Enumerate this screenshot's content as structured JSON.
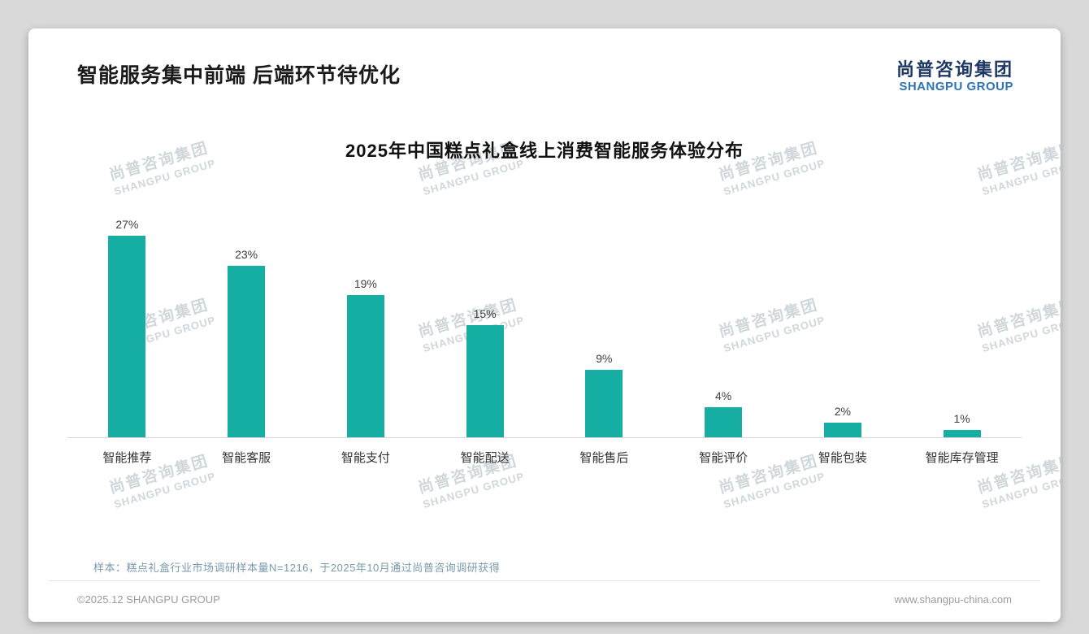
{
  "page": {
    "title": "智能服务集中前端 后端环节待优化",
    "logo": {
      "cn": "尚普咨询集团",
      "en": "SHANGPU GROUP"
    },
    "watermark": {
      "cn": "尚普咨询集团",
      "en": "SHANGPU GROUP"
    },
    "footnote": "样本：糕点礼盒行业市场调研样本量N=1216，于2025年10月通过尚普咨询调研获得",
    "footer_left": "©2025.12 SHANGPU GROUP",
    "footer_right": "www.shangpu-china.com"
  },
  "colors": {
    "bar": "#16ada3",
    "logo_cn": "#1f3864",
    "logo_en": "#2e74b5",
    "footnote": "#7b9aaa"
  },
  "chart_data": {
    "type": "bar",
    "title": "2025年中国糕点礼盒线上消费智能服务体验分布",
    "categories": [
      "智能推荐",
      "智能客服",
      "智能支付",
      "智能配送",
      "智能售后",
      "智能评价",
      "智能包装",
      "智能库存管理"
    ],
    "values": [
      27,
      23,
      19,
      15,
      9,
      4,
      2,
      1
    ],
    "unit": "%",
    "xlabel": "",
    "ylabel": "",
    "ylim": [
      0,
      30
    ],
    "grid": false,
    "legend": "none",
    "bar_color": "#16ada3",
    "value_labels": [
      "27%",
      "23%",
      "19%",
      "15%",
      "9%",
      "4%",
      "2%",
      "1%"
    ]
  }
}
